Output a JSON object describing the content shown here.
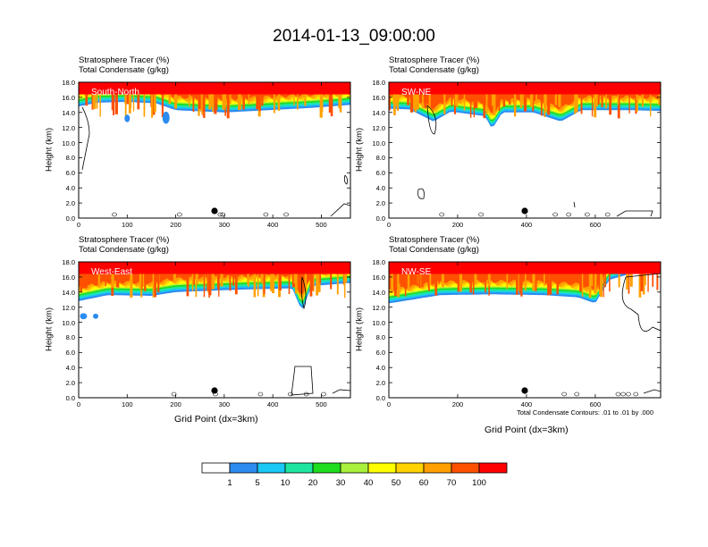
{
  "title": "2014-01-13_09:00:00",
  "legend_labels": [
    "1",
    "5",
    "10",
    "20",
    "30",
    "40",
    "50",
    "60",
    "70",
    "100"
  ],
  "colors": [
    "#ffffff",
    "#2c8cf0",
    "#19c8f5",
    "#1ee6a0",
    "#1edc1e",
    "#a8f03c",
    "#ffff00",
    "#ffd200",
    "#ffa000",
    "#ff5000",
    "#ff0000"
  ],
  "footnote": "Total Condensate Contours: .01 to .01 by .000",
  "chart_data": [
    {
      "type": "heatmap",
      "panel_label": "South-North",
      "title_lines": [
        "Stratosphere Tracer   (%)",
        "Total Condensate   (g/kg)"
      ],
      "ylabel": "Height (km)",
      "xlabel": "",
      "xlim": [
        0,
        560
      ],
      "ylim": [
        0,
        18
      ],
      "xticks": [
        0,
        100,
        200,
        300,
        400,
        500
      ],
      "yticks": [
        "0.0",
        "2.0",
        "4.0",
        "6.0",
        "8.0",
        "10.0",
        "12.0",
        "14.0",
        "16.0",
        "18.0"
      ],
      "marker_x": 280,
      "tracer_base_km": [
        [
          0,
          14.8
        ],
        [
          40,
          15.3
        ],
        [
          100,
          15.4
        ],
        [
          160,
          15.2
        ],
        [
          200,
          14.3
        ],
        [
          300,
          14.0
        ],
        [
          420,
          14.4
        ],
        [
          480,
          14.6
        ],
        [
          560,
          15.0
        ]
      ],
      "cloud_patches_km": [
        [
          100,
          13.2,
          3,
          0.5
        ],
        [
          180,
          13.3,
          4,
          0.8
        ]
      ]
    },
    {
      "type": "heatmap",
      "panel_label": "SW-NE",
      "title_lines": [
        "Stratosphere Tracer   (%)",
        "Total Condensate   (g/kg)"
      ],
      "ylabel": "Height (km)",
      "xlabel": "",
      "xlim": [
        0,
        790
      ],
      "ylim": [
        0,
        18
      ],
      "xticks": [
        0,
        200,
        400,
        600
      ],
      "yticks": [
        "0.0",
        "2.0",
        "4.0",
        "6.0",
        "8.0",
        "10.0",
        "12.0",
        "14.0",
        "16.0",
        "18.0"
      ],
      "marker_x": 395,
      "tracer_base_km": [
        [
          0,
          14.5
        ],
        [
          60,
          14.4
        ],
        [
          130,
          12.8
        ],
        [
          180,
          14.1
        ],
        [
          280,
          13.5
        ],
        [
          300,
          11.8
        ],
        [
          330,
          14.0
        ],
        [
          420,
          14.0
        ],
        [
          500,
          12.8
        ],
        [
          560,
          14.3
        ],
        [
          700,
          14.3
        ],
        [
          790,
          14.2
        ]
      ],
      "cloud_patches_km": []
    },
    {
      "type": "heatmap",
      "panel_label": "West-East",
      "title_lines": [
        "Stratosphere Tracer   (%)",
        "Total Condensate   (g/kg)"
      ],
      "ylabel": "Height (km)",
      "xlabel": "Grid Point (dx=3km)",
      "xlim": [
        0,
        560
      ],
      "ylim": [
        0,
        18
      ],
      "xticks": [
        0,
        100,
        200,
        300,
        400,
        500
      ],
      "yticks": [
        "0.0",
        "2.0",
        "4.0",
        "6.0",
        "8.0",
        "10.0",
        "12.0",
        "14.0",
        "16.0",
        "18.0"
      ],
      "marker_x": 280,
      "tracer_base_km": [
        [
          0,
          12.8
        ],
        [
          60,
          13.6
        ],
        [
          150,
          13.5
        ],
        [
          200,
          14.0
        ],
        [
          320,
          14.3
        ],
        [
          440,
          14.5
        ],
        [
          460,
          11.5
        ],
        [
          480,
          14.8
        ],
        [
          560,
          15.2
        ]
      ],
      "cloud_patches_km": [
        [
          10,
          10.8,
          4,
          0.4
        ],
        [
          35,
          10.8,
          3,
          0.35
        ]
      ]
    },
    {
      "type": "heatmap",
      "panel_label": "NW-SE",
      "title_lines": [
        "Stratosphere Tracer   (%)",
        "Total Condensate   (g/kg)"
      ],
      "ylabel": "Height (km)",
      "xlabel": "Grid Point (dx=3km)",
      "xlim": [
        0,
        790
      ],
      "ylim": [
        0,
        18
      ],
      "xticks": [
        0,
        200,
        400,
        600
      ],
      "yticks": [
        "0.0",
        "2.0",
        "4.0",
        "6.0",
        "8.0",
        "10.0",
        "12.0",
        "14.0",
        "16.0",
        "18.0"
      ],
      "marker_x": 395,
      "tracer_base_km": [
        [
          0,
          12.5
        ],
        [
          150,
          13.6
        ],
        [
          300,
          13.7
        ],
        [
          450,
          13.6
        ],
        [
          550,
          13.3
        ],
        [
          600,
          12.5
        ],
        [
          640,
          15.6
        ],
        [
          700,
          16.4
        ],
        [
          790,
          16.8
        ]
      ],
      "cloud_patches_km": []
    }
  ]
}
